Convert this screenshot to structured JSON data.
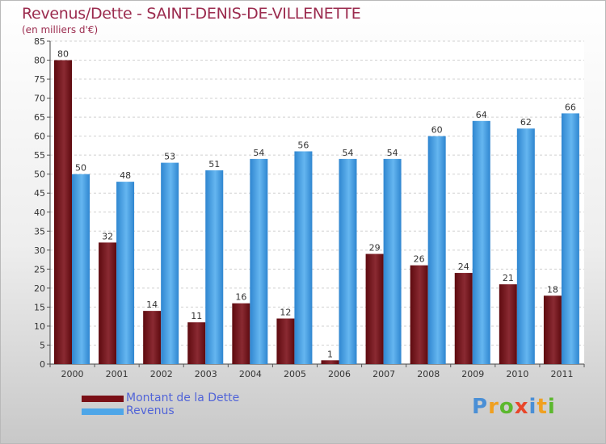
{
  "chart_data": {
    "type": "bar",
    "title": "Revenus/Dette - SAINT-DENIS-DE-VILLENETTE",
    "subtitle": "(en milliers d'€)",
    "categories": [
      "2000",
      "2001",
      "2002",
      "2003",
      "2004",
      "2005",
      "2006",
      "2007",
      "2008",
      "2009",
      "2010",
      "2011"
    ],
    "series": [
      {
        "name": "Montant de la Dette",
        "color": "#7a0f16",
        "values": [
          80,
          32,
          14,
          11,
          16,
          12,
          1,
          29,
          26,
          24,
          21,
          18
        ]
      },
      {
        "name": "Revenus",
        "color": "#4ea6e8",
        "values": [
          50,
          48,
          53,
          51,
          54,
          56,
          54,
          54,
          60,
          64,
          62,
          66
        ]
      }
    ],
    "ylim": [
      0,
      85
    ],
    "yticks": [
      0,
      5,
      10,
      15,
      20,
      25,
      30,
      35,
      40,
      45,
      50,
      55,
      60,
      65,
      70,
      75,
      80,
      85
    ],
    "grid": true,
    "legend_position": "bottom-left",
    "data_labels": true
  },
  "logo": {
    "letters": [
      {
        "ch": "P",
        "color": "#4a8fd6"
      },
      {
        "ch": "r",
        "color": "#f0a020"
      },
      {
        "ch": "o",
        "color": "#5cb82e"
      },
      {
        "ch": "x",
        "color": "#e8462a"
      },
      {
        "ch": "i",
        "color": "#4a8fd6"
      },
      {
        "ch": "t",
        "color": "#f0a020"
      },
      {
        "ch": "i",
        "color": "#5cb82e"
      }
    ]
  }
}
